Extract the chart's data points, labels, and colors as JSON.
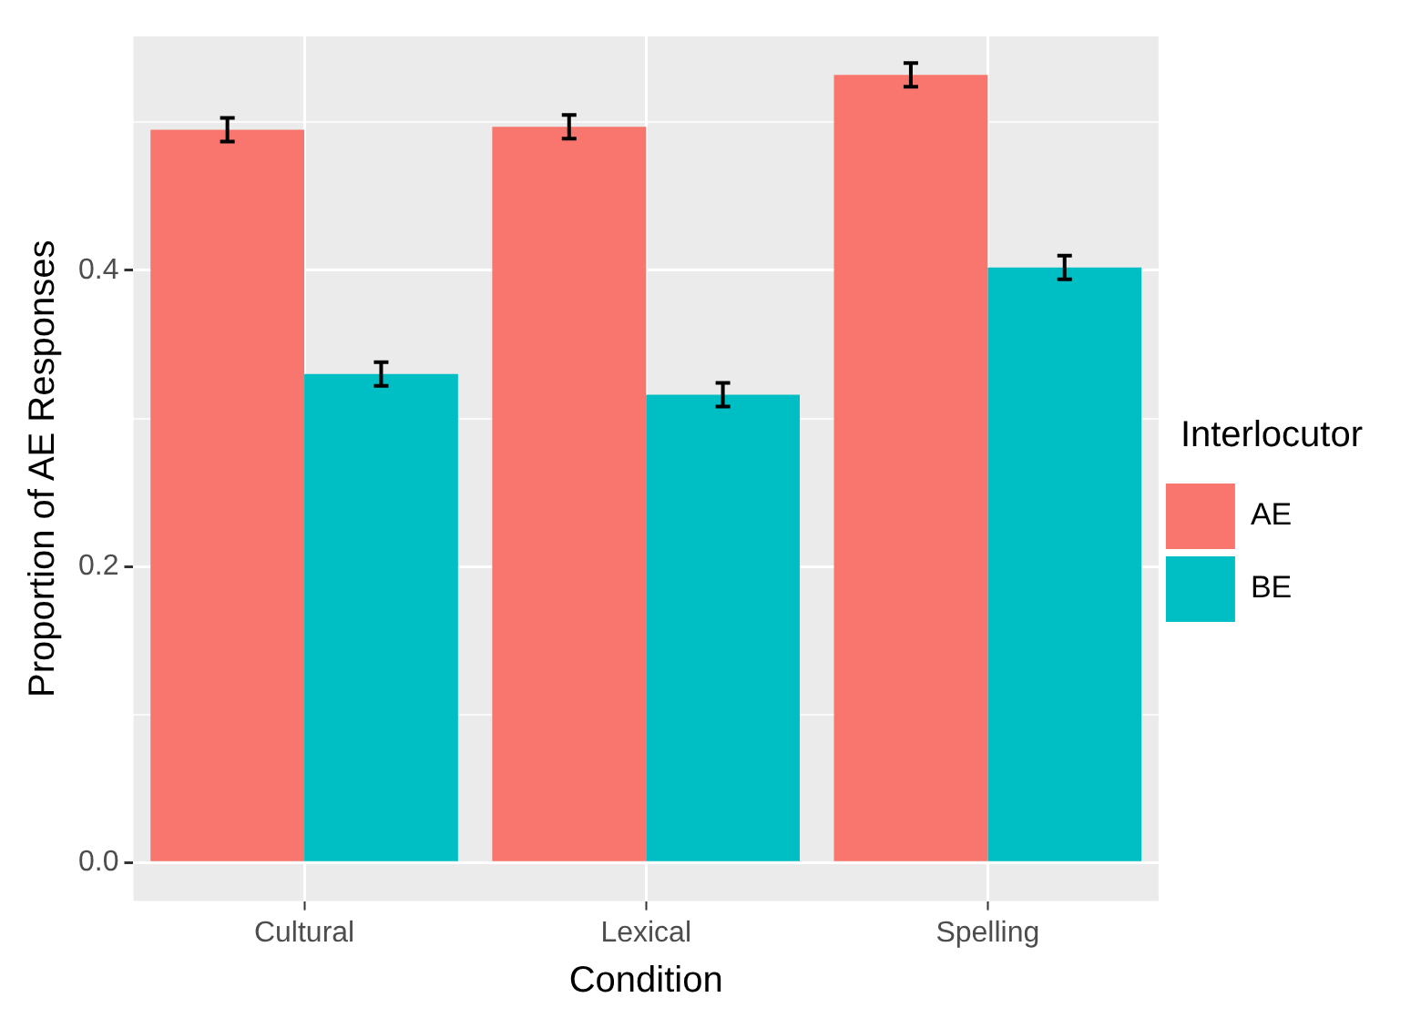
{
  "chart_data": {
    "type": "bar",
    "xlabel": "Condition",
    "ylabel": "Proportion of AE Responses",
    "legend_title": "Interlocutor",
    "legend": "right",
    "grid": true,
    "categories": [
      "Cultural",
      "Lexical",
      "Spelling"
    ],
    "series": [
      {
        "name": "AE",
        "color": "#f8766d",
        "values": [
          0.495,
          0.497,
          0.532
        ],
        "errors": [
          0.008,
          0.008,
          0.008
        ]
      },
      {
        "name": "BE",
        "color": "#00bfc4",
        "values": [
          0.33,
          0.316,
          0.402
        ],
        "errors": [
          0.008,
          0.008,
          0.008
        ]
      }
    ],
    "ylim": [
      -0.026,
      0.558
    ],
    "yticks": [
      {
        "value": 0,
        "label": "0.0"
      },
      {
        "value": 0.1,
        "label": null
      },
      0.2,
      {
        "value": 0.3,
        "label": null
      },
      0.4,
      {
        "value": 0.5,
        "label": null
      }
    ]
  }
}
